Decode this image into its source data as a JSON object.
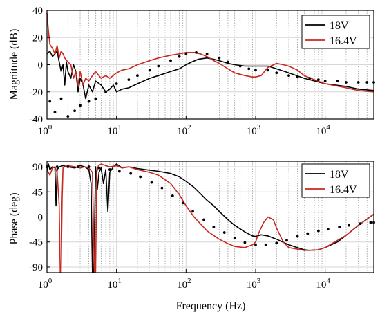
{
  "chart_data": [
    {
      "type": "line",
      "ylabel": "Magnitude (dB)",
      "xlabel": "",
      "xscale": "log",
      "xlim": [
        1,
        50000
      ],
      "ylim": [
        -40,
        40
      ],
      "yticks": [
        "40",
        "20",
        "0",
        "-20",
        "-40"
      ],
      "yticks_values": [
        40,
        20,
        0,
        -20,
        -40
      ],
      "xticks": [
        {
          "base": "10",
          "exp": "0",
          "value": 1
        },
        {
          "base": "10",
          "exp": "1",
          "value": 10
        },
        {
          "base": "10",
          "exp": "2",
          "value": 100
        },
        {
          "base": "10",
          "exp": "3",
          "value": 1000
        },
        {
          "base": "10",
          "exp": "4",
          "value": 10000
        }
      ],
      "grid": true,
      "legend_position": "top-right",
      "series": [
        {
          "name": "18V",
          "color": "#000000",
          "style": "solid",
          "x": [
            1,
            1.1,
            1.2,
            1.3,
            1.4,
            1.5,
            1.6,
            1.7,
            1.8,
            1.9,
            2,
            2.2,
            2.4,
            2.6,
            2.8,
            3,
            3.3,
            3.6,
            4,
            4.5,
            5,
            6,
            7,
            8,
            9,
            10,
            12,
            15,
            20,
            30,
            40,
            60,
            80,
            100,
            120,
            150,
            200,
            250,
            300,
            400,
            500,
            700,
            1000,
            1500,
            2000,
            3000,
            5000,
            10000,
            20000,
            30000,
            50000
          ],
          "y": [
            8,
            10,
            6,
            8,
            10,
            2,
            -5,
            0,
            -15,
            2,
            -5,
            -10,
            0,
            -5,
            -20,
            -10,
            -15,
            -25,
            -15,
            -20,
            -12,
            -15,
            -20,
            -18,
            -15,
            -20,
            -18,
            -17,
            -14,
            -10,
            -8,
            -5,
            -3,
            0,
            2,
            4,
            5,
            4,
            3,
            1,
            0,
            -1,
            -1,
            -1,
            -3,
            -6,
            -10,
            -14,
            -16,
            -18,
            -19
          ]
        },
        {
          "name": "16.4V",
          "color": "#c8281e",
          "style": "solid",
          "x": [
            1,
            1.05,
            1.1,
            1.2,
            1.3,
            1.4,
            1.5,
            1.6,
            1.7,
            1.8,
            2,
            2.2,
            2.4,
            2.6,
            2.8,
            3,
            3.3,
            3.6,
            4,
            4.5,
            5,
            6,
            7,
            8,
            10,
            12,
            15,
            20,
            30,
            40,
            60,
            80,
            100,
            130,
            160,
            200,
            250,
            300,
            400,
            500,
            700,
            900,
            1000,
            1200,
            1500,
            2000,
            2500,
            3000,
            4000,
            5000,
            7000,
            10000,
            20000,
            30000,
            50000
          ],
          "y": [
            38,
            25,
            15,
            12,
            8,
            14,
            5,
            10,
            8,
            5,
            2,
            0,
            -10,
            -5,
            -15,
            -5,
            -15,
            -10,
            -12,
            -8,
            -5,
            -10,
            -8,
            -10,
            -6,
            -4,
            -3,
            0,
            3,
            5,
            7,
            8,
            9,
            9,
            8,
            6,
            3,
            1,
            -3,
            -6,
            -8,
            -9,
            -9,
            -8,
            -2,
            1,
            0,
            -1,
            -4,
            -8,
            -11,
            -14,
            -17,
            -19,
            -20
          ]
        },
        {
          "name": "",
          "color": "#000000",
          "style": "dots",
          "x": [
            1.1,
            1.3,
            1.6,
            2,
            2.5,
            3,
            4,
            5,
            7,
            10,
            15,
            20,
            30,
            40,
            60,
            80,
            100,
            140,
            200,
            300,
            400,
            600,
            800,
            1000,
            1500,
            2000,
            3000,
            4000,
            6000,
            8000,
            10000,
            15000,
            20000,
            30000,
            40000,
            50000
          ],
          "y": [
            -27,
            -35,
            -25,
            -38,
            -34,
            -30,
            -27,
            -25,
            -20,
            -14,
            -11,
            -8,
            -4,
            -1,
            3,
            6,
            8,
            9,
            8,
            5,
            2,
            -1,
            -3,
            -4,
            -4,
            -6,
            -8,
            -9,
            -10,
            -11,
            -12,
            -12,
            -13,
            -13,
            -13,
            -13
          ]
        }
      ]
    },
    {
      "type": "line",
      "ylabel": "Phase (deg)",
      "xlabel": "Frequency (Hz)",
      "xscale": "log",
      "xlim": [
        1,
        50000
      ],
      "ylim": [
        -100,
        100
      ],
      "yticks": [
        "90",
        "45",
        "0",
        "-45",
        "-90"
      ],
      "yticks_values": [
        90,
        45,
        0,
        -45,
        -90
      ],
      "xticks": [
        {
          "base": "10",
          "exp": "0",
          "value": 1
        },
        {
          "base": "10",
          "exp": "1",
          "value": 10
        },
        {
          "base": "10",
          "exp": "2",
          "value": 100
        },
        {
          "base": "10",
          "exp": "3",
          "value": 1000
        },
        {
          "base": "10",
          "exp": "4",
          "value": 10000
        }
      ],
      "grid": true,
      "legend_position": "top-right",
      "series": [
        {
          "name": "18V",
          "color": "#000000",
          "style": "solid",
          "x": [
            1,
            1.05,
            1.1,
            1.2,
            1.3,
            1.35,
            1.4,
            1.5,
            1.7,
            2,
            2.5,
            3,
            3.5,
            4,
            4.3,
            4.5,
            4.7,
            5,
            5.3,
            5.6,
            6,
            6.5,
            7,
            7.5,
            8,
            9,
            10,
            12,
            15,
            20,
            30,
            40,
            60,
            80,
            100,
            130,
            160,
            200,
            250,
            300,
            400,
            500,
            700,
            900,
            1000,
            1200,
            1500,
            2000,
            3000,
            5000,
            6000,
            8000,
            10000,
            15000,
            20000,
            30000,
            50000
          ],
          "y": [
            80,
            95,
            85,
            90,
            88,
            20,
            85,
            90,
            92,
            90,
            88,
            92,
            90,
            85,
            60,
            -100,
            -100,
            90,
            50,
            80,
            88,
            60,
            85,
            10,
            80,
            90,
            95,
            88,
            90,
            87,
            84,
            82,
            78,
            72,
            64,
            53,
            42,
            30,
            20,
            10,
            -5,
            -15,
            -27,
            -34,
            -35,
            -32,
            -34,
            -40,
            -50,
            -59,
            -60,
            -59,
            -55,
            -45,
            -33,
            -15,
            5
          ]
        },
        {
          "name": "16.4V",
          "color": "#c8281e",
          "style": "solid",
          "x": [
            1,
            1.1,
            1.2,
            1.3,
            1.4,
            1.5,
            1.55,
            1.6,
            1.65,
            1.7,
            1.8,
            2,
            2.5,
            3,
            3.5,
            4,
            4.5,
            4.8,
            5,
            5.2,
            5.5,
            6,
            7,
            8,
            10,
            12,
            15,
            20,
            30,
            40,
            60,
            80,
            100,
            130,
            160,
            200,
            300,
            400,
            500,
            700,
            900,
            1000,
            1100,
            1300,
            1500,
            1800,
            2000,
            2500,
            3000,
            5000,
            6000,
            8000,
            10000,
            20000,
            30000,
            50000
          ],
          "y": [
            85,
            75,
            88,
            90,
            80,
            20,
            -100,
            -100,
            30,
            88,
            90,
            92,
            90,
            88,
            90,
            88,
            80,
            -100,
            -100,
            80,
            92,
            95,
            92,
            90,
            92,
            88,
            90,
            85,
            80,
            75,
            60,
            40,
            20,
            0,
            -12,
            -25,
            -40,
            -48,
            -53,
            -55,
            -50,
            -45,
            -30,
            -10,
            0,
            -5,
            -20,
            -45,
            -55,
            -60,
            -60,
            -59,
            -55,
            -33,
            -15,
            5
          ]
        },
        {
          "name": "",
          "color": "#000000",
          "style": "dots",
          "x": [
            1,
            1.4,
            2,
            2.8,
            4,
            5.6,
            8,
            11,
            16,
            22,
            32,
            45,
            64,
            90,
            125,
            180,
            250,
            355,
            500,
            700,
            1000,
            1400,
            2000,
            2800,
            4000,
            5600,
            8000,
            11000,
            16000,
            22000,
            32000,
            45000,
            50000
          ],
          "y": [
            90,
            90,
            90,
            90,
            90,
            88,
            85,
            82,
            78,
            72,
            62,
            52,
            38,
            25,
            10,
            -5,
            -18,
            -28,
            -38,
            -46,
            -50,
            -50,
            -47,
            -42,
            -35,
            -30,
            -25,
            -22,
            -18,
            -15,
            -12,
            -10,
            -10
          ]
        }
      ]
    }
  ]
}
